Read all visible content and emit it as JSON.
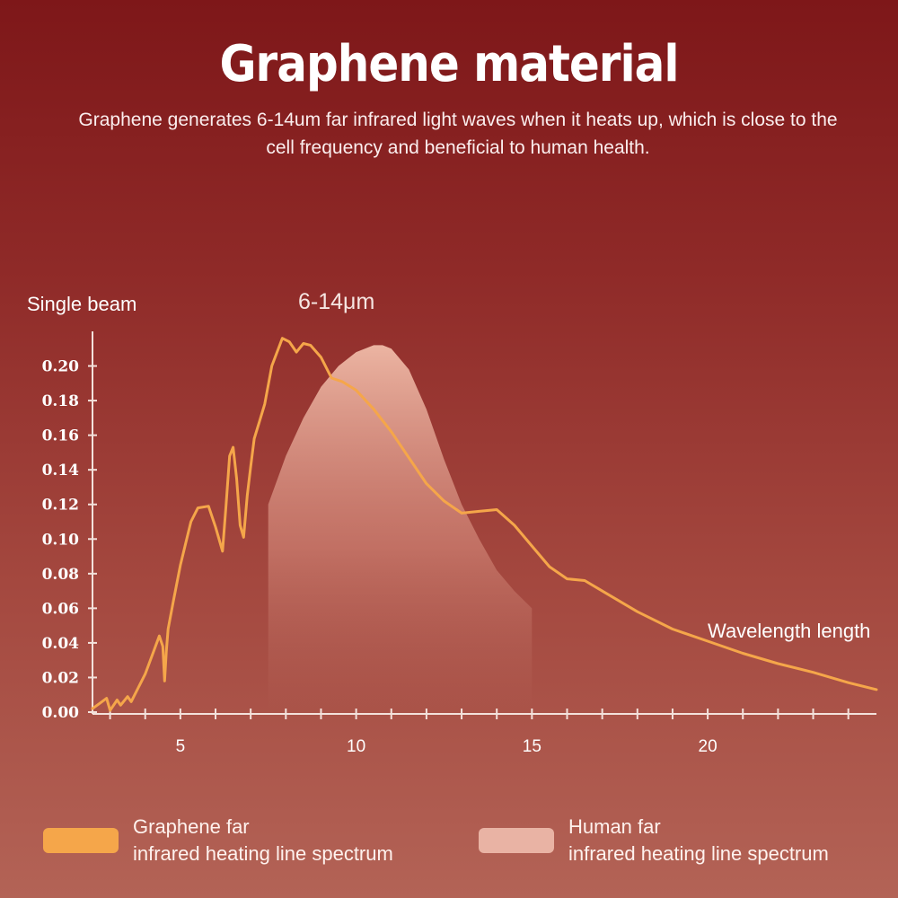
{
  "header": {
    "title": "Graphene material",
    "subtitle": "Graphene generates 6-14um far infrared light waves when it heats up, which is close to the cell frequency and beneficial to human health."
  },
  "chart_data": {
    "type": "line",
    "ylabel": "Single beam",
    "xlabel": "Wavelength length",
    "annotation": "6-14μm",
    "xlim": [
      2.5,
      24.8
    ],
    "ylim": [
      0.0,
      0.22
    ],
    "x_ticks": [
      5,
      10,
      15,
      20
    ],
    "y_ticks": [
      "0.00",
      "0.02",
      "0.04",
      "0.06",
      "0.08",
      "0.10",
      "0.12",
      "0.14",
      "0.16",
      "0.18",
      "0.20"
    ],
    "grid": false,
    "legend_placement": "bottom",
    "series": [
      {
        "name": "Graphene far infrared heating line spectrum",
        "color": "#f5a64a",
        "x": [
          2.5,
          2.7,
          2.9,
          3.0,
          3.2,
          3.3,
          3.5,
          3.6,
          3.8,
          4.0,
          4.2,
          4.4,
          4.5,
          4.55,
          4.6,
          4.65,
          4.8,
          5.0,
          5.3,
          5.5,
          5.8,
          6.0,
          6.2,
          6.3,
          6.4,
          6.5,
          6.6,
          6.7,
          6.8,
          6.9,
          7.0,
          7.1,
          7.25,
          7.4,
          7.6,
          7.9,
          8.1,
          8.3,
          8.5,
          8.7,
          9.0,
          9.3,
          9.6,
          10.0,
          10.5,
          11.0,
          11.5,
          12.0,
          12.5,
          13.0,
          13.5,
          14.0,
          14.5,
          15.0,
          15.5,
          16.0,
          16.5,
          17.0,
          18.0,
          19.0,
          20.0,
          21.0,
          22.0,
          23.0,
          24.0,
          24.8
        ],
        "values": [
          0.002,
          0.005,
          0.008,
          0.001,
          0.007,
          0.004,
          0.009,
          0.006,
          0.014,
          0.022,
          0.033,
          0.044,
          0.038,
          0.018,
          0.035,
          0.048,
          0.064,
          0.085,
          0.11,
          0.118,
          0.119,
          0.107,
          0.093,
          0.12,
          0.148,
          0.153,
          0.135,
          0.108,
          0.101,
          0.125,
          0.142,
          0.158,
          0.168,
          0.178,
          0.2,
          0.216,
          0.214,
          0.208,
          0.213,
          0.212,
          0.205,
          0.193,
          0.191,
          0.186,
          0.175,
          0.162,
          0.147,
          0.132,
          0.122,
          0.115,
          0.116,
          0.117,
          0.108,
          0.096,
          0.084,
          0.077,
          0.076,
          0.07,
          0.058,
          0.048,
          0.041,
          0.034,
          0.028,
          0.023,
          0.017,
          0.013
        ]
      },
      {
        "name": "Human far infrared heating line spectrum",
        "color": "#ecb09c",
        "x": [
          7.5,
          8.0,
          8.5,
          9.0,
          9.5,
          10.0,
          10.5,
          10.75,
          11.0,
          11.5,
          12.0,
          12.5,
          13.0,
          13.5,
          14.0,
          14.5,
          15.0
        ],
        "values": [
          0.12,
          0.148,
          0.17,
          0.188,
          0.2,
          0.208,
          0.212,
          0.212,
          0.21,
          0.198,
          0.175,
          0.146,
          0.12,
          0.1,
          0.082,
          0.07,
          0.06
        ]
      }
    ]
  },
  "legend": {
    "graphene_line1": "Graphene far",
    "graphene_line2": "infrared heating line spectrum",
    "human_line1": "Human far",
    "human_line2": "infrared heating line spectrum"
  },
  "colors": {
    "graphene": "#f5a64a",
    "human": "#ecb09c",
    "axis": "#f3e2dc"
  }
}
